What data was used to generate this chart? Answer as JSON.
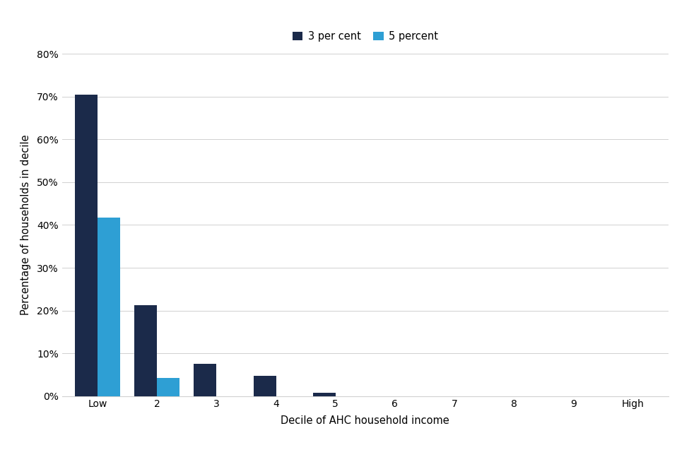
{
  "categories": [
    "Low",
    "2",
    "3",
    "4",
    "5",
    "6",
    "7",
    "8",
    "9",
    "High"
  ],
  "series1_label": "3 per cent",
  "series1_color": "#1b2a4a",
  "series1_values": [
    70.5,
    21.3,
    7.5,
    4.7,
    0.8,
    0.0,
    0.0,
    0.0,
    0.0,
    0.0
  ],
  "series2_label": "5 percent",
  "series2_color": "#2e9fd4",
  "series2_values": [
    41.8,
    4.3,
    0.0,
    0.0,
    0.0,
    0.0,
    0.0,
    0.0,
    0.0,
    0.0
  ],
  "xlabel": "Decile of AHC household income",
  "ylabel": "Percentage of households in decile",
  "ylim": [
    0,
    80
  ],
  "yticks": [
    0,
    10,
    20,
    30,
    40,
    50,
    60,
    70,
    80
  ],
  "background_color": "#ffffff",
  "grid_color": "#d0d0d0",
  "bar_width": 0.38,
  "axis_label_fontsize": 10.5,
  "tick_fontsize": 10,
  "legend_fontsize": 10.5
}
